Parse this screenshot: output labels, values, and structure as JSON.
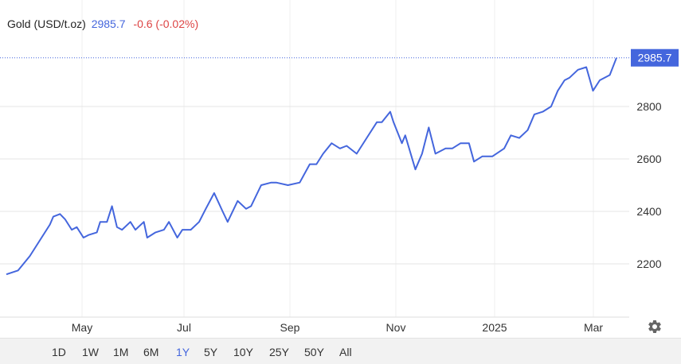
{
  "header": {
    "title": "Gold (USD/t.oz)",
    "price": "2985.7",
    "change": "-0.6 (-0.02%)"
  },
  "ranges": [
    "1D",
    "1W",
    "1M",
    "6M",
    "1Y",
    "5Y",
    "10Y",
    "25Y",
    "50Y",
    "All"
  ],
  "active_range": "1Y",
  "colors": {
    "line": "#4466dd",
    "change_negative": "#dd4444",
    "price_tag": "#4466dd"
  },
  "settings_icon": "gear-icon",
  "chart_data": {
    "type": "line",
    "x_ticks": [
      "May",
      "Jul",
      "Sep",
      "Nov",
      "2025",
      "Mar"
    ],
    "y_ticks": [
      2200,
      2400,
      2600,
      2800
    ],
    "ylim": [
      2000,
      3000
    ],
    "last_value_label": "2985.7",
    "grid": true,
    "series": [
      {
        "x": [
          "2024-03-15",
          "2024-03-22",
          "2024-03-29",
          "2024-04-05",
          "2024-04-10",
          "2024-04-12",
          "2024-04-16",
          "2024-04-19",
          "2024-04-23",
          "2024-04-26",
          "2024-04-30",
          "2024-05-03",
          "2024-05-08",
          "2024-05-10",
          "2024-05-14",
          "2024-05-17",
          "2024-05-20",
          "2024-05-23",
          "2024-05-28",
          "2024-05-31",
          "2024-06-05",
          "2024-06-07",
          "2024-06-12",
          "2024-06-17",
          "2024-06-20",
          "2024-06-25",
          "2024-06-28",
          "2024-07-03",
          "2024-07-08",
          "2024-07-12",
          "2024-07-17",
          "2024-07-22",
          "2024-07-25",
          "2024-07-31",
          "2024-08-05",
          "2024-08-08",
          "2024-08-14",
          "2024-08-20",
          "2024-08-23",
          "2024-08-30",
          "2024-09-06",
          "2024-09-12",
          "2024-09-16",
          "2024-09-20",
          "2024-09-25",
          "2024-09-30",
          "2024-10-04",
          "2024-10-10",
          "2024-10-16",
          "2024-10-22",
          "2024-10-25",
          "2024-10-30",
          "2024-11-01",
          "2024-11-06",
          "2024-11-08",
          "2024-11-14",
          "2024-11-18",
          "2024-11-22",
          "2024-11-26",
          "2024-12-02",
          "2024-12-06",
          "2024-12-11",
          "2024-12-16",
          "2024-12-19",
          "2024-12-24",
          "2024-12-30",
          "2025-01-06",
          "2025-01-10",
          "2025-01-15",
          "2025-01-20",
          "2025-01-24",
          "2025-01-29",
          "2025-02-03",
          "2025-02-07",
          "2025-02-11",
          "2025-02-14",
          "2025-02-19",
          "2025-02-24",
          "2025-02-28",
          "2025-03-04",
          "2025-03-10",
          "2025-03-14"
        ],
        "values": [
          2160,
          2175,
          2230,
          2300,
          2350,
          2380,
          2390,
          2370,
          2330,
          2340,
          2300,
          2310,
          2320,
          2360,
          2360,
          2420,
          2340,
          2330,
          2360,
          2330,
          2360,
          2300,
          2320,
          2330,
          2360,
          2300,
          2330,
          2330,
          2360,
          2410,
          2470,
          2400,
          2360,
          2440,
          2410,
          2420,
          2500,
          2510,
          2510,
          2500,
          2510,
          2580,
          2580,
          2620,
          2660,
          2640,
          2650,
          2620,
          2680,
          2740,
          2740,
          2780,
          2740,
          2660,
          2690,
          2560,
          2620,
          2720,
          2620,
          2640,
          2640,
          2660,
          2660,
          2590,
          2610,
          2610,
          2640,
          2690,
          2680,
          2710,
          2770,
          2780,
          2800,
          2860,
          2900,
          2910,
          2940,
          2950,
          2860,
          2900,
          2920,
          2985.7
        ]
      }
    ]
  }
}
